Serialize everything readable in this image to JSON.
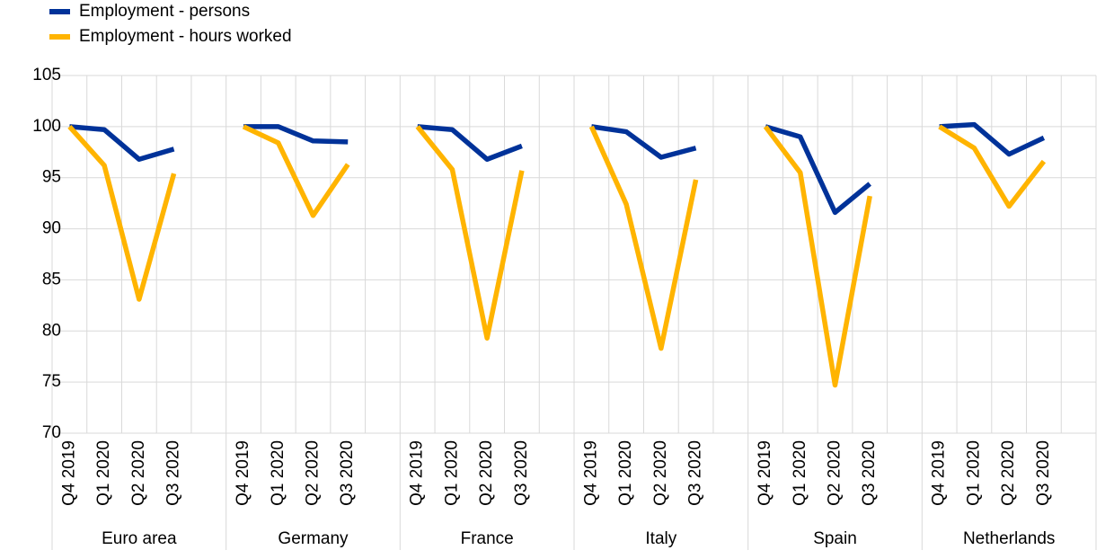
{
  "chart_data": {
    "type": "line",
    "categories": [
      "Q4 2019",
      "Q1 2020",
      "Q2 2020",
      "Q3 2020",
      null,
      "Q4 2019",
      "Q1 2020",
      "Q2 2020",
      "Q3 2020",
      null,
      "Q4 2019",
      "Q1 2020",
      "Q2 2020",
      "Q3 2020",
      null,
      "Q4 2019",
      "Q1 2020",
      "Q2 2020",
      "Q3 2020",
      null,
      "Q4 2019",
      "Q1 2020",
      "Q2 2020",
      "Q3 2020",
      null,
      "Q4 2019",
      "Q1 2020",
      "Q2 2020",
      "Q3 2020",
      null
    ],
    "groups": [
      "Euro area",
      "Germany",
      "France",
      "Italy",
      "Spain",
      "Netherlands"
    ],
    "series": [
      {
        "name": "Employment - persons",
        "color": "#003299",
        "values": [
          100,
          99.7,
          96.8,
          97.8,
          null,
          100,
          100,
          98.6,
          98.5,
          null,
          100,
          99.7,
          96.8,
          98.1,
          null,
          100,
          99.5,
          97.0,
          97.9,
          null,
          100,
          99.0,
          91.6,
          94.4,
          null,
          100,
          100.2,
          97.3,
          98.9,
          null
        ]
      },
      {
        "name": "Employment - hours worked",
        "color": "#FFB400",
        "values": [
          100,
          96.2,
          83.1,
          95.4,
          null,
          100,
          98.4,
          91.3,
          96.3,
          null,
          100,
          95.8,
          79.3,
          95.7,
          null,
          100,
          92.4,
          78.3,
          94.8,
          null,
          100,
          95.5,
          74.7,
          93.2,
          null,
          100,
          97.9,
          92.2,
          96.6,
          null
        ]
      }
    ],
    "ylim": [
      70,
      105
    ],
    "yticks": [
      70,
      75,
      80,
      85,
      90,
      95,
      100,
      105
    ],
    "grid": true
  }
}
